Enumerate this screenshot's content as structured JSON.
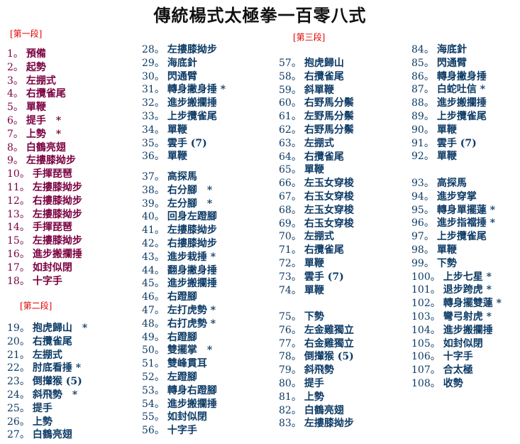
{
  "header": {
    "title": "傳統楊式太極拳一百零八式"
  },
  "columns": [
    {
      "groups": [
        {
          "heading": "[第一段]",
          "items": [
            [
              "1。",
              "預備"
            ],
            [
              "2。",
              "起勢"
            ],
            [
              "3。",
              "左掤式"
            ],
            [
              "4。",
              "右攬雀尾"
            ],
            [
              "5。",
              "單鞭"
            ],
            [
              "6。",
              "提手　*"
            ],
            [
              "7。",
              "上勢　*"
            ],
            [
              "8。",
              "白鶴亮翅"
            ],
            [
              "9。",
              "左摟膝拗步"
            ],
            [
              "10。",
              "手揮琵琶"
            ],
            [
              "11。",
              "左摟膝拗步"
            ],
            [
              "12。",
              "右摟膝拗步"
            ],
            [
              "13。",
              "左摟膝拗步"
            ],
            [
              "14。",
              "手揮琵琶"
            ],
            [
              "15。",
              "左摟膝拗步"
            ],
            [
              "16。",
              "進步搬攔捶"
            ],
            [
              "17。",
              "如封似閉"
            ],
            [
              "18。",
              "十字手"
            ]
          ]
        },
        {
          "heading": "[第二段]",
          "items": [
            [
              "19。",
              "抱虎歸山　*"
            ],
            [
              "20。",
              "右攬雀尾"
            ],
            [
              "21。",
              "左掤式"
            ],
            [
              "22。",
              "肘底看捶 *"
            ],
            [
              "23。",
              "倒攆猴 (5)"
            ],
            [
              "24。",
              "斜飛勢　*"
            ],
            [
              "25。",
              "提手"
            ],
            [
              "26。",
              "上勢"
            ],
            [
              "27。",
              "白鶴亮翅"
            ]
          ]
        }
      ]
    },
    {
      "groups": [
        {
          "items": [
            [
              "28。",
              "左摟膝拗步"
            ],
            [
              "29。",
              "海底針"
            ],
            [
              "30。",
              "閃通臂"
            ],
            [
              "31。",
              "轉身撇身捶 *"
            ],
            [
              "32。",
              "進步搬攔捶"
            ],
            [
              "33。",
              "上步攬雀尾"
            ],
            [
              "34。",
              "單鞭"
            ],
            [
              "35。",
              "雲手 (7)"
            ],
            [
              "36。",
              "單鞭"
            ]
          ]
        },
        {
          "items": [
            [
              "37。",
              "高探馬"
            ],
            [
              "38。",
              "右分腳　*"
            ],
            [
              "39。",
              "左分腳　*"
            ],
            [
              "40。",
              "回身左蹬腳"
            ],
            [
              "41。",
              "左摟膝拗步"
            ],
            [
              "42。",
              "右摟膝拗步"
            ],
            [
              "43。",
              "進步栽捶 *"
            ],
            [
              "44。",
              "翻身撇身捶"
            ],
            [
              "45。",
              "進步搬攔捶"
            ],
            [
              "46。",
              "右蹬腳"
            ],
            [
              "47。",
              "左打虎勢 *"
            ],
            [
              "48。",
              "右打虎勢 *"
            ],
            [
              "49。",
              "右蹬腳"
            ],
            [
              "50。",
              "雙擺掌　*"
            ],
            [
              "51。",
              "雙峰貫耳"
            ],
            [
              "52。",
              "左蹬腳"
            ],
            [
              "53。",
              "轉身右蹬腳"
            ],
            [
              "54。",
              "進步搬攔捶"
            ],
            [
              "55。",
              "如封似閉"
            ],
            [
              "56。",
              "十字手"
            ]
          ]
        }
      ]
    },
    {
      "groups": [
        {
          "heading": "[第三段]",
          "items": [
            [
              "57。",
              "抱虎歸山"
            ],
            [
              "58。",
              "右攬雀尾"
            ],
            [
              "59。",
              "斜單鞭"
            ],
            [
              "60。",
              "右野馬分鬃"
            ],
            [
              "61。",
              "左野馬分鬃"
            ],
            [
              "62。",
              "右野馬分鬃"
            ],
            [
              "63。",
              "左掤式"
            ],
            [
              "64。",
              "右攬雀尾"
            ],
            [
              "65。",
              "單鞭"
            ],
            [
              "66。",
              "左玉女穿梭"
            ],
            [
              "67。",
              "右玉女穿梭"
            ],
            [
              "68。",
              "左玉女穿梭"
            ],
            [
              "69。",
              "右玉女穿梭"
            ],
            [
              "70。",
              "左掤式"
            ],
            [
              "71。",
              "右攬雀尾"
            ],
            [
              "72。",
              "單鞭"
            ],
            [
              "73。",
              "雲手 (7)"
            ],
            [
              "74。",
              "單鞭"
            ]
          ]
        },
        {
          "items": [
            [
              "75。",
              "下勢"
            ],
            [
              "76。",
              "左金雞獨立"
            ],
            [
              "77。",
              "右金雞獨立"
            ],
            [
              "78。",
              "倒攆猴 (5)"
            ],
            [
              "79。",
              "斜飛勢"
            ],
            [
              "80。",
              "提手"
            ],
            [
              "81。",
              "上勢"
            ],
            [
              "82。",
              "白鶴亮翅"
            ],
            [
              "83。",
              "左摟膝拗步"
            ]
          ]
        }
      ]
    },
    {
      "groups": [
        {
          "items": [
            [
              "84。",
              "海底針"
            ],
            [
              "85。",
              "閃通臂"
            ],
            [
              "86。",
              "轉身撇身捶"
            ],
            [
              "87。",
              "白蛇吐信 *"
            ],
            [
              "88。",
              "進步搬攔捶"
            ],
            [
              "89。",
              "上步攬雀尾"
            ],
            [
              "90。",
              "單鞭"
            ],
            [
              "91。",
              "雲手 (7)"
            ],
            [
              "92。",
              "單鞭"
            ]
          ]
        },
        {
          "items": [
            [
              "93。",
              "高探馬"
            ],
            [
              "94。",
              "進步穿掌"
            ],
            [
              "95。",
              "轉身單擺蓮 *"
            ],
            [
              "96。",
              "進步指襠捶 *"
            ],
            [
              "97。",
              "上步攬雀尾"
            ],
            [
              "98。",
              "單鞭"
            ],
            [
              "99。",
              "下勢"
            ],
            [
              "100。",
              "上步七星 *"
            ],
            [
              "101。",
              "退步跨虎 *"
            ],
            [
              "102。",
              "轉身擺雙蓮 *"
            ],
            [
              "103。",
              "彎弓射虎 *"
            ],
            [
              "104。",
              "進步搬攔捶"
            ],
            [
              "105。",
              "如封似閉"
            ],
            [
              "106。",
              "十字手"
            ],
            [
              "107。",
              "合太極"
            ],
            [
              "108。",
              "收勢"
            ]
          ]
        }
      ]
    }
  ]
}
